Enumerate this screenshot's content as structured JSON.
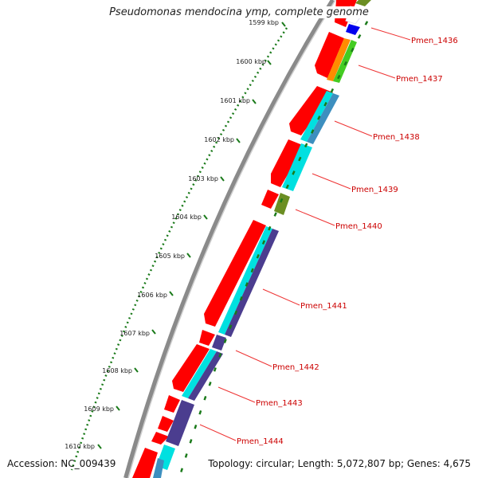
{
  "title": "Pseudomonas mendocina ymp, complete genome",
  "footer": {
    "accession": "Accession: NC_009439",
    "topology": "Topology: circular; Length: 5,072,807 bp; Genes: 4,675"
  },
  "scale_ticks": [
    "1599 kbp",
    "1600 kbp",
    "1601 kbp",
    "1602 kbp",
    "1603 kbp",
    "1604 kbp",
    "1605 kbp",
    "1606 kbp",
    "1607 kbp",
    "1608 kbp",
    "1609 kbp",
    "1610 kbp"
  ],
  "gene_labels": [
    "Pmen_1436",
    "Pmen_1437",
    "Pmen_1438",
    "Pmen_1439",
    "Pmen_1440",
    "Pmen_1441",
    "Pmen_1442",
    "Pmen_1443",
    "Pmen_1444"
  ],
  "colors": {
    "cds": "#ff0000",
    "label_text": "#cc0000",
    "leader_line": "#ee3333",
    "tick": "#1a7a1a",
    "cyan": "#00e0e0",
    "steelblue": "#3d8fbf",
    "olive": "#6b8e23",
    "indigo": "#4b3d8f",
    "orange": "#ff8c00",
    "green": "#44cc22",
    "blue": "#0000ee",
    "backbone": "#808080"
  }
}
